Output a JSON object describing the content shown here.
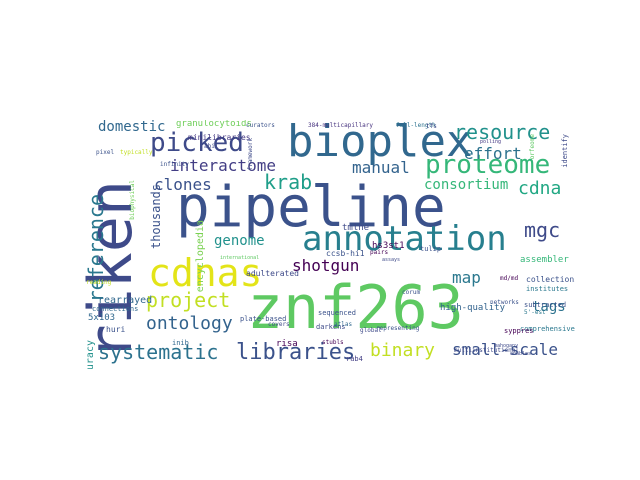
{
  "words": [
    {
      "text": "pipeline",
      "color": "#3b528b"
    },
    {
      "text": "riken",
      "color": "#3e4a89"
    },
    {
      "text": "znf263",
      "color": "#5ec962"
    },
    {
      "text": "bioplex",
      "color": "#31688e"
    },
    {
      "text": "annotation",
      "color": "#277f8e"
    },
    {
      "text": "cdnas",
      "color": "#e3e418"
    },
    {
      "text": "proteome",
      "color": "#35b779"
    },
    {
      "text": "libraries",
      "color": "#3b528b"
    },
    {
      "text": "picked",
      "color": "#3e4a89"
    },
    {
      "text": "resource",
      "color": "#21918c"
    },
    {
      "text": "systematic",
      "color": "#2c728e"
    },
    {
      "text": "ontology",
      "color": "#33638d"
    },
    {
      "text": "project",
      "color": "#c2df23"
    },
    {
      "text": "reference",
      "color": "#2a788e"
    },
    {
      "text": "krab",
      "color": "#1f9e89"
    },
    {
      "text": "interactome",
      "color": "#433e85"
    },
    {
      "text": "clones",
      "color": "#3b528b"
    },
    {
      "text": "manual",
      "color": "#33638d"
    },
    {
      "text": "effort",
      "color": "#2c728e"
    },
    {
      "text": "cdna",
      "color": "#22a884"
    },
    {
      "text": "mgc",
      "color": "#3e4a89"
    },
    {
      "text": "binary",
      "color": "#c2df23"
    },
    {
      "text": "small-scale",
      "color": "#3b528b"
    },
    {
      "text": "shotgun",
      "color": "#440154"
    },
    {
      "text": "map",
      "color": "#2a788e"
    },
    {
      "text": "consortium",
      "color": "#35b779"
    },
    {
      "text": "domestic",
      "color": "#31688e"
    },
    {
      "text": "genome",
      "color": "#21918c"
    },
    {
      "text": "thousands",
      "color": "#3b528b"
    },
    {
      "text": "tags",
      "color": "#2c728e"
    },
    {
      "text": "encyclopedia",
      "color": "#7ad151"
    },
    {
      "text": "granulocytoids",
      "color": "#6ece58"
    },
    {
      "text": "minilibraries",
      "color": "#443983"
    },
    {
      "text": "high-quality",
      "color": "#33638d"
    },
    {
      "text": "collections",
      "color": "#3b528b"
    },
    {
      "text": "assembler",
      "color": "#35b779"
    },
    {
      "text": "institutes",
      "color": "#2a788e"
    },
    {
      "text": "comprehensive",
      "color": "#2a788e"
    },
    {
      "text": "rearrayed",
      "color": "#31688e"
    },
    {
      "text": "accuracy",
      "color": "#21918c"
    },
    {
      "text": "hs3st1",
      "color": "#440154"
    },
    {
      "text": "tmlhe",
      "color": "#3e4a89"
    },
    {
      "text": "adulterated",
      "color": "#3e4a89"
    },
    {
      "text": "5x103",
      "color": "#31688e"
    },
    {
      "text": "curators",
      "color": "#3b528b"
    },
    {
      "text": "384-multicapillary",
      "color": "#46327e"
    },
    {
      "text": "full-length",
      "color": "#2c728e"
    },
    {
      "text": "sequenced",
      "color": "#3b528b"
    },
    {
      "text": "risa",
      "color": "#440154"
    },
    {
      "text": "rab4",
      "color": "#433e85"
    },
    {
      "text": "inib",
      "color": "#31688e"
    },
    {
      "text": "tulip",
      "color": "#3b528b"
    },
    {
      "text": "subtracted",
      "color": "#3b528b"
    },
    {
      "text": "multiinstitutional",
      "color": "#3e4a89"
    },
    {
      "text": "ccsb-hi1",
      "color": "#3b528b"
    },
    {
      "text": "5'-est",
      "color": "#2a788e"
    },
    {
      "text": "syppres",
      "color": "#440154"
    },
    {
      "text": "mahogany",
      "color": "#3e4a89"
    },
    {
      "text": "plate-based",
      "color": "#3b528b"
    },
    {
      "text": "pairs",
      "color": "#440154"
    },
    {
      "text": "darkens",
      "color": "#3e4a89"
    },
    {
      "text": "stubls",
      "color": "#440154"
    },
    {
      "text": "global",
      "color": "#3e4a89"
    },
    {
      "text": "atlas",
      "color": "#31688e"
    },
    {
      "text": "md/md",
      "color": "#440154"
    },
    {
      "text": "representing",
      "color": "#3b528b"
    },
    {
      "text": "enables",
      "color": "#3e4a89"
    },
    {
      "text": "polling",
      "color": "#443983"
    },
    {
      "text": "networks",
      "color": "#3b528b"
    },
    {
      "text": "huri",
      "color": "#3b528b"
    },
    {
      "text": "tfs",
      "color": "#3e4a89"
    },
    {
      "text": "corum",
      "color": "#3b528b"
    },
    {
      "text": "covers",
      "color": "#3e4a89"
    },
    {
      "text": "connections",
      "color": "#31688e"
    },
    {
      "text": "framework",
      "color": "#3e4a89"
    },
    {
      "text": "international",
      "color": "#5ec962"
    },
    {
      "text": "reading",
      "color": "#c2df23"
    },
    {
      "text": "identify",
      "color": "#3e4a89"
    },
    {
      "text": "orfeome",
      "color": "#5ec962"
    },
    {
      "text": "abil",
      "color": "#3e4a89"
    },
    {
      "text": "pixel",
      "color": "#3b528b"
    },
    {
      "text": "typically",
      "color": "#c2df23"
    },
    {
      "text": "infinity",
      "color": "#3b528b"
    },
    {
      "text": "assays",
      "color": "#3e4a89"
    },
    {
      "text": "biophysical",
      "color": "#6ece58"
    }
  ]
}
